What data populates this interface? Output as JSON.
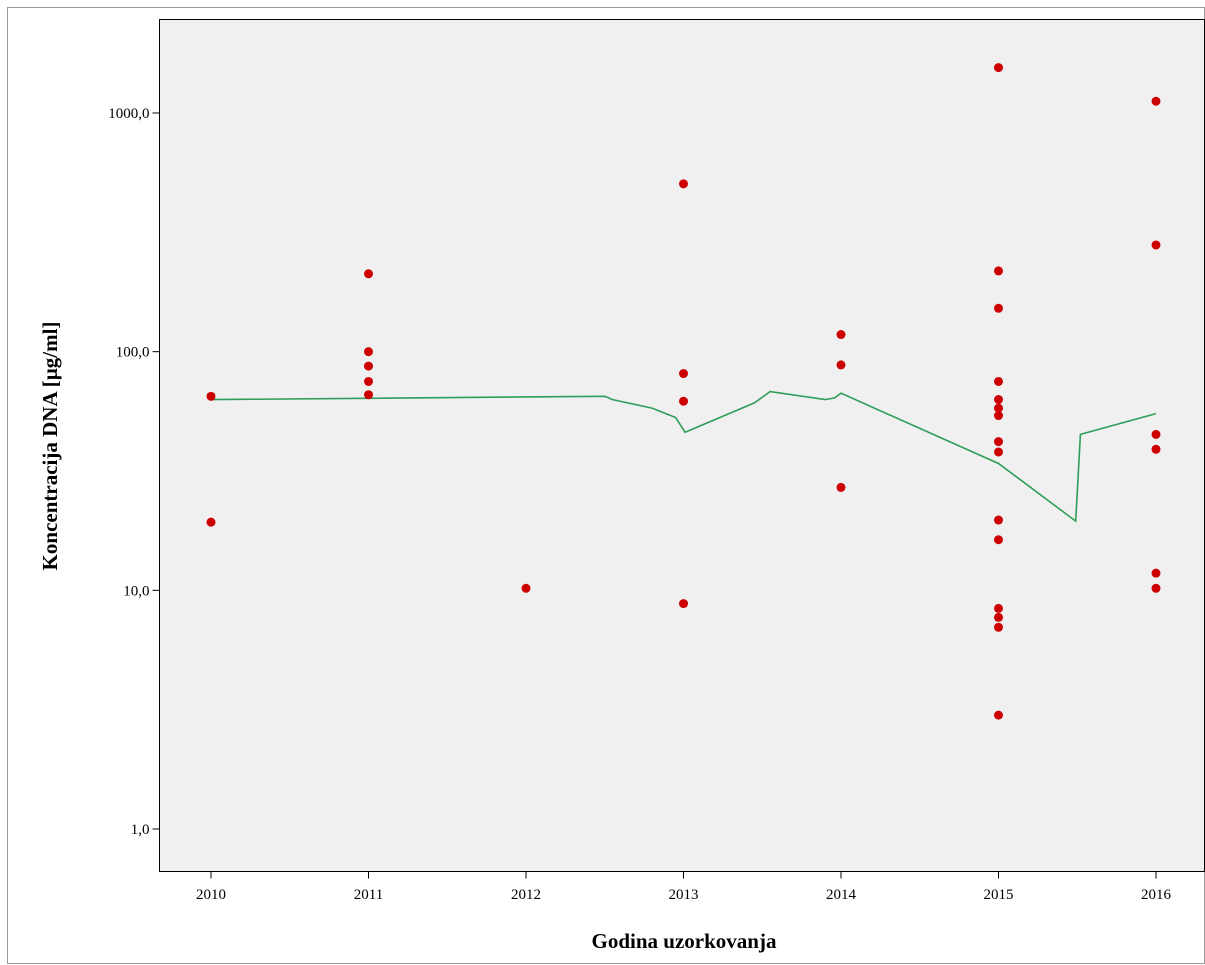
{
  "chart_data": {
    "type": "scatter",
    "xlabel": "Godina uzorkovanja",
    "ylabel": "Koncentracija DNA [µg/ml]",
    "yscale": "log",
    "xlim": [
      2009.7,
      2016.3
    ],
    "ylim": [
      0.67,
      2500
    ],
    "x_ticks": [
      2010,
      2011,
      2012,
      2013,
      2014,
      2015,
      2016
    ],
    "x_tick_labels": [
      "2010",
      "2011",
      "2012",
      "2013",
      "2014",
      "2015",
      "2016"
    ],
    "y_ticks": [
      1,
      10,
      100,
      1000
    ],
    "y_tick_labels": [
      "1,0",
      "10,0",
      "100,0",
      "1000,0"
    ],
    "grid": false,
    "legend": "none",
    "plot_background": "#f0f0f0",
    "point_color": "#cc0000",
    "line_color": "#2e9e5a",
    "points": [
      {
        "x": 2010,
        "y": 65
      },
      {
        "x": 2010,
        "y": 19.3
      },
      {
        "x": 2011,
        "y": 212
      },
      {
        "x": 2011,
        "y": 100
      },
      {
        "x": 2011,
        "y": 87
      },
      {
        "x": 2011,
        "y": 75
      },
      {
        "x": 2011,
        "y": 66
      },
      {
        "x": 2012,
        "y": 10.2
      },
      {
        "x": 2013,
        "y": 505
      },
      {
        "x": 2013,
        "y": 81
      },
      {
        "x": 2013,
        "y": 62
      },
      {
        "x": 2013,
        "y": 8.8
      },
      {
        "x": 2014,
        "y": 118
      },
      {
        "x": 2014,
        "y": 88
      },
      {
        "x": 2014,
        "y": 27
      },
      {
        "x": 2015,
        "y": 1550
      },
      {
        "x": 2015,
        "y": 218
      },
      {
        "x": 2015,
        "y": 152
      },
      {
        "x": 2015,
        "y": 75
      },
      {
        "x": 2015,
        "y": 63
      },
      {
        "x": 2015,
        "y": 58
      },
      {
        "x": 2015,
        "y": 54
      },
      {
        "x": 2015,
        "y": 42
      },
      {
        "x": 2015,
        "y": 38
      },
      {
        "x": 2015,
        "y": 19.7
      },
      {
        "x": 2015,
        "y": 16.3
      },
      {
        "x": 2015,
        "y": 8.4
      },
      {
        "x": 2015,
        "y": 7.7
      },
      {
        "x": 2015,
        "y": 7.0
      },
      {
        "x": 2015,
        "y": 3.0
      },
      {
        "x": 2016,
        "y": 1120
      },
      {
        "x": 2016,
        "y": 280
      },
      {
        "x": 2016,
        "y": 45
      },
      {
        "x": 2016,
        "y": 39
      },
      {
        "x": 2016,
        "y": 11.8
      },
      {
        "x": 2016,
        "y": 10.2
      }
    ],
    "fit_line": [
      {
        "x": 2010.0,
        "y": 63
      },
      {
        "x": 2012.5,
        "y": 65
      },
      {
        "x": 2012.55,
        "y": 63
      },
      {
        "x": 2012.8,
        "y": 58
      },
      {
        "x": 2012.95,
        "y": 53
      },
      {
        "x": 2013.01,
        "y": 46
      },
      {
        "x": 2013.45,
        "y": 61
      },
      {
        "x": 2013.55,
        "y": 68
      },
      {
        "x": 2013.9,
        "y": 63
      },
      {
        "x": 2013.96,
        "y": 64
      },
      {
        "x": 2014.0,
        "y": 67
      },
      {
        "x": 2015.0,
        "y": 34
      },
      {
        "x": 2015.49,
        "y": 19.5
      },
      {
        "x": 2015.52,
        "y": 45
      },
      {
        "x": 2016.0,
        "y": 55
      }
    ]
  }
}
